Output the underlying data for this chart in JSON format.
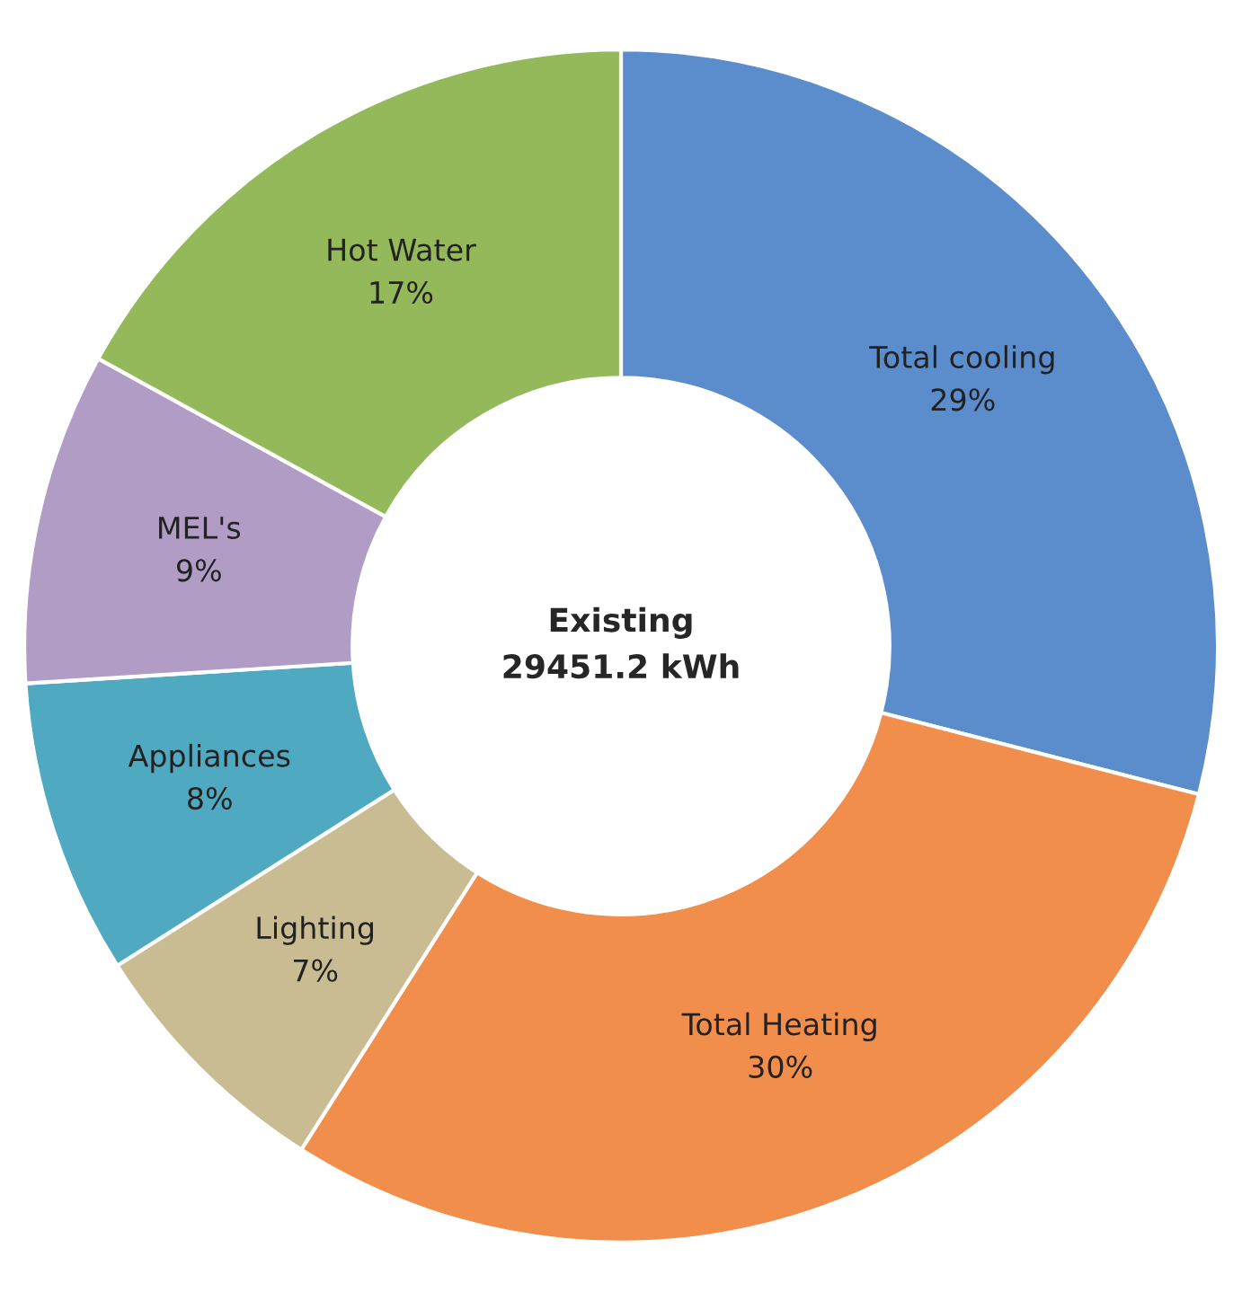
{
  "chart_data": {
    "type": "donut",
    "categories": [
      "Total cooling",
      "Total Heating",
      "Lighting",
      "Appliances",
      "MEL's",
      "Hot Water"
    ],
    "values": [
      29,
      30,
      7,
      8,
      9,
      17
    ],
    "value_labels": [
      "29%",
      "30%",
      "7%",
      "8%",
      "9%",
      "17%"
    ],
    "colors": [
      "#5b8ccc",
      "#f28e4c",
      "#c9bc92",
      "#4fa9c0",
      "#b09cc4",
      "#94b95a"
    ],
    "annotations": [
      "Existing\n29451.2 kWh"
    ],
    "legend": false
  }
}
